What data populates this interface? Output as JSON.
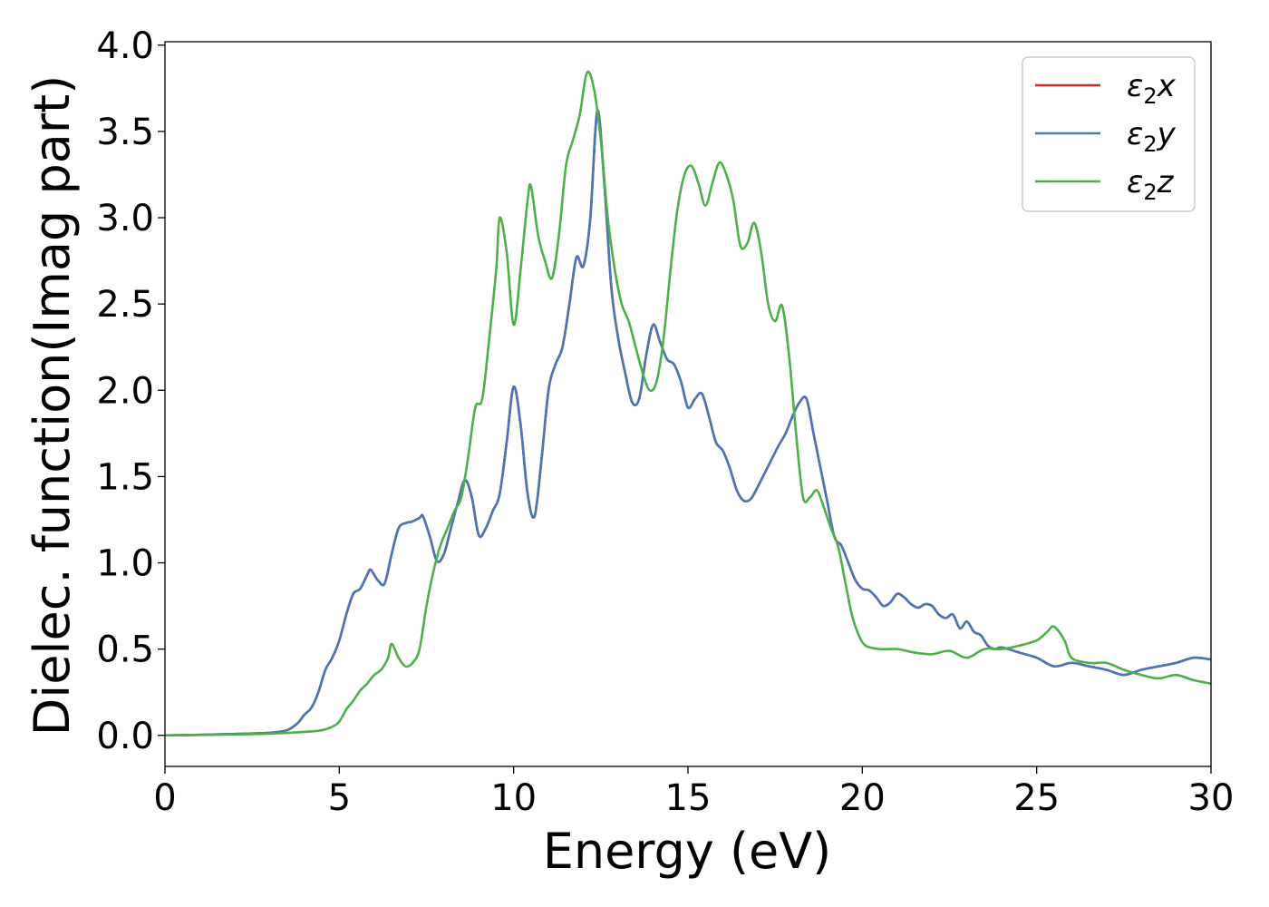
{
  "chart_data": {
    "type": "line",
    "xlabel": "Energy (eV)",
    "ylabel": "Dielec. function(Imag part)",
    "xlim": [
      0,
      30
    ],
    "ylim": [
      -0.18,
      4.02
    ],
    "xticks": [
      "0",
      "5",
      "10",
      "15",
      "20",
      "25",
      "30"
    ],
    "yticks": [
      "0.0",
      "0.5",
      "1.0",
      "1.5",
      "2.0",
      "2.5",
      "3.0",
      "3.5",
      "4.0"
    ],
    "grid": false,
    "legend": "top-right",
    "series": [
      {
        "name": "ε2x",
        "symbol": "ε",
        "sub": "2",
        "axis": "x",
        "color": "#d62728",
        "x": [
          0,
          1,
          2,
          3,
          3.5,
          3.8,
          4.0,
          4.2,
          4.4,
          4.6,
          4.8,
          5.0,
          5.2,
          5.4,
          5.6,
          5.8,
          5.9,
          6.1,
          6.3,
          6.5,
          6.7,
          6.9,
          7.1,
          7.3,
          7.4,
          7.6,
          7.8,
          8.0,
          8.2,
          8.4,
          8.6,
          8.8,
          9.0,
          9.2,
          9.4,
          9.6,
          9.8,
          10.0,
          10.2,
          10.4,
          10.6,
          10.8,
          11.0,
          11.2,
          11.4,
          11.6,
          11.8,
          12.0,
          12.2,
          12.4,
          12.6,
          12.8,
          13.0,
          13.2,
          13.4,
          13.6,
          13.8,
          14.0,
          14.2,
          14.4,
          14.6,
          14.8,
          15.0,
          15.2,
          15.4,
          15.6,
          15.8,
          16.0,
          16.2,
          16.4,
          16.6,
          16.8,
          17.0,
          17.2,
          17.4,
          17.6,
          17.8,
          18.0,
          18.2,
          18.4,
          18.6,
          18.8,
          19.0,
          19.2,
          19.4,
          19.6,
          19.8,
          20.0,
          20.2,
          20.4,
          20.6,
          20.8,
          21.0,
          21.2,
          21.4,
          21.6,
          21.8,
          22.0,
          22.2,
          22.4,
          22.6,
          22.8,
          23.0,
          23.2,
          23.4,
          23.6,
          23.8,
          24.0,
          24.5,
          25.0,
          25.5,
          26.0,
          26.5,
          27.0,
          27.5,
          28.0,
          28.5,
          29.0,
          29.5,
          30.0
        ],
        "y": [
          0.0,
          0.003,
          0.008,
          0.015,
          0.03,
          0.07,
          0.12,
          0.16,
          0.25,
          0.38,
          0.45,
          0.55,
          0.7,
          0.82,
          0.85,
          0.93,
          0.96,
          0.9,
          0.88,
          1.05,
          1.2,
          1.23,
          1.24,
          1.26,
          1.27,
          1.15,
          1.01,
          1.05,
          1.2,
          1.35,
          1.48,
          1.38,
          1.16,
          1.2,
          1.3,
          1.4,
          1.7,
          2.02,
          1.8,
          1.4,
          1.27,
          1.6,
          2.0,
          2.15,
          2.25,
          2.5,
          2.77,
          2.72,
          3.0,
          3.62,
          3.2,
          2.6,
          2.3,
          2.1,
          1.93,
          1.95,
          2.2,
          2.38,
          2.28,
          2.18,
          2.15,
          2.05,
          1.9,
          1.95,
          1.98,
          1.85,
          1.7,
          1.65,
          1.55,
          1.42,
          1.36,
          1.37,
          1.44,
          1.52,
          1.6,
          1.68,
          1.75,
          1.85,
          1.93,
          1.95,
          1.75,
          1.55,
          1.35,
          1.15,
          1.1,
          1.0,
          0.9,
          0.85,
          0.84,
          0.8,
          0.75,
          0.77,
          0.82,
          0.8,
          0.76,
          0.74,
          0.76,
          0.75,
          0.7,
          0.68,
          0.7,
          0.62,
          0.66,
          0.6,
          0.58,
          0.52,
          0.5,
          0.51,
          0.48,
          0.45,
          0.4,
          0.42,
          0.4,
          0.38,
          0.35,
          0.38,
          0.4,
          0.42,
          0.45,
          0.44
        ]
      },
      {
        "name": "ε2y",
        "symbol": "ε",
        "sub": "2",
        "axis": "y",
        "color": "#4a77b4",
        "x": [
          0,
          1,
          2,
          3,
          3.5,
          3.8,
          4.0,
          4.2,
          4.4,
          4.6,
          4.8,
          5.0,
          5.2,
          5.4,
          5.6,
          5.8,
          5.9,
          6.1,
          6.3,
          6.5,
          6.7,
          6.9,
          7.1,
          7.3,
          7.4,
          7.6,
          7.8,
          8.0,
          8.2,
          8.4,
          8.6,
          8.8,
          9.0,
          9.2,
          9.4,
          9.6,
          9.8,
          10.0,
          10.2,
          10.4,
          10.6,
          10.8,
          11.0,
          11.2,
          11.4,
          11.6,
          11.8,
          12.0,
          12.2,
          12.4,
          12.6,
          12.8,
          13.0,
          13.2,
          13.4,
          13.6,
          13.8,
          14.0,
          14.2,
          14.4,
          14.6,
          14.8,
          15.0,
          15.2,
          15.4,
          15.6,
          15.8,
          16.0,
          16.2,
          16.4,
          16.6,
          16.8,
          17.0,
          17.2,
          17.4,
          17.6,
          17.8,
          18.0,
          18.2,
          18.4,
          18.6,
          18.8,
          19.0,
          19.2,
          19.4,
          19.6,
          19.8,
          20.0,
          20.2,
          20.4,
          20.6,
          20.8,
          21.0,
          21.2,
          21.4,
          21.6,
          21.8,
          22.0,
          22.2,
          22.4,
          22.6,
          22.8,
          23.0,
          23.2,
          23.4,
          23.6,
          23.8,
          24.0,
          24.5,
          25.0,
          25.5,
          26.0,
          26.5,
          27.0,
          27.5,
          28.0,
          28.5,
          29.0,
          29.5,
          30.0
        ],
        "y": [
          0.0,
          0.003,
          0.008,
          0.015,
          0.03,
          0.07,
          0.12,
          0.16,
          0.25,
          0.38,
          0.45,
          0.55,
          0.7,
          0.82,
          0.85,
          0.93,
          0.96,
          0.9,
          0.88,
          1.05,
          1.2,
          1.23,
          1.24,
          1.26,
          1.27,
          1.15,
          1.01,
          1.05,
          1.2,
          1.35,
          1.48,
          1.38,
          1.16,
          1.2,
          1.3,
          1.4,
          1.7,
          2.02,
          1.8,
          1.4,
          1.27,
          1.6,
          2.0,
          2.15,
          2.25,
          2.5,
          2.77,
          2.72,
          3.0,
          3.62,
          3.2,
          2.6,
          2.3,
          2.1,
          1.93,
          1.95,
          2.2,
          2.38,
          2.28,
          2.18,
          2.15,
          2.05,
          1.9,
          1.95,
          1.98,
          1.85,
          1.7,
          1.65,
          1.55,
          1.42,
          1.36,
          1.37,
          1.44,
          1.52,
          1.6,
          1.68,
          1.75,
          1.85,
          1.93,
          1.95,
          1.75,
          1.55,
          1.35,
          1.15,
          1.1,
          1.0,
          0.9,
          0.85,
          0.84,
          0.8,
          0.75,
          0.77,
          0.82,
          0.8,
          0.76,
          0.74,
          0.76,
          0.75,
          0.7,
          0.68,
          0.7,
          0.62,
          0.66,
          0.6,
          0.58,
          0.52,
          0.5,
          0.51,
          0.48,
          0.45,
          0.4,
          0.42,
          0.4,
          0.38,
          0.35,
          0.38,
          0.4,
          0.42,
          0.45,
          0.44
        ]
      },
      {
        "name": "ε2z",
        "symbol": "ε",
        "sub": "2",
        "axis": "z",
        "color": "#4daf4a",
        "x": [
          0,
          1,
          2,
          3,
          4,
          4.5,
          4.8,
          5.0,
          5.2,
          5.4,
          5.6,
          5.8,
          6.0,
          6.2,
          6.4,
          6.5,
          6.7,
          6.9,
          7.1,
          7.3,
          7.5,
          7.7,
          7.9,
          8.1,
          8.3,
          8.5,
          8.7,
          8.9,
          9.1,
          9.3,
          9.5,
          9.6,
          9.8,
          10.0,
          10.2,
          10.4,
          10.5,
          10.7,
          10.9,
          11.1,
          11.3,
          11.5,
          11.7,
          11.9,
          12.1,
          12.3,
          12.5,
          12.7,
          12.9,
          13.1,
          13.3,
          13.5,
          13.7,
          13.9,
          14.1,
          14.3,
          14.5,
          14.7,
          14.9,
          15.1,
          15.3,
          15.5,
          15.7,
          15.9,
          16.1,
          16.3,
          16.5,
          16.7,
          16.9,
          17.1,
          17.3,
          17.5,
          17.7,
          17.9,
          18.1,
          18.3,
          18.5,
          18.7,
          18.9,
          19.1,
          19.3,
          19.5,
          19.7,
          19.9,
          20.1,
          20.5,
          21,
          21.5,
          22,
          22.5,
          23,
          23.5,
          24,
          24.5,
          25,
          25.3,
          25.5,
          25.8,
          26,
          26.5,
          27,
          27.5,
          28,
          28.5,
          29,
          29.5,
          30
        ],
        "y": [
          0.0,
          0.002,
          0.005,
          0.01,
          0.02,
          0.03,
          0.05,
          0.08,
          0.15,
          0.2,
          0.26,
          0.3,
          0.35,
          0.38,
          0.45,
          0.53,
          0.45,
          0.4,
          0.42,
          0.5,
          0.75,
          0.95,
          1.1,
          1.2,
          1.3,
          1.38,
          1.62,
          1.9,
          1.95,
          2.3,
          2.7,
          3.0,
          2.8,
          2.38,
          2.7,
          3.1,
          3.18,
          2.9,
          2.75,
          2.65,
          2.9,
          3.3,
          3.45,
          3.6,
          3.84,
          3.75,
          3.45,
          3.0,
          2.7,
          2.5,
          2.4,
          2.25,
          2.1,
          2.0,
          2.05,
          2.3,
          2.7,
          3.05,
          3.25,
          3.3,
          3.2,
          3.07,
          3.2,
          3.32,
          3.25,
          3.1,
          2.84,
          2.85,
          2.97,
          2.8,
          2.5,
          2.4,
          2.49,
          2.2,
          1.75,
          1.38,
          1.38,
          1.42,
          1.32,
          1.2,
          1.1,
          0.9,
          0.7,
          0.58,
          0.52,
          0.5,
          0.5,
          0.48,
          0.47,
          0.49,
          0.45,
          0.5,
          0.5,
          0.52,
          0.55,
          0.6,
          0.63,
          0.55,
          0.45,
          0.42,
          0.42,
          0.38,
          0.35,
          0.33,
          0.35,
          0.32,
          0.3
        ]
      }
    ]
  }
}
